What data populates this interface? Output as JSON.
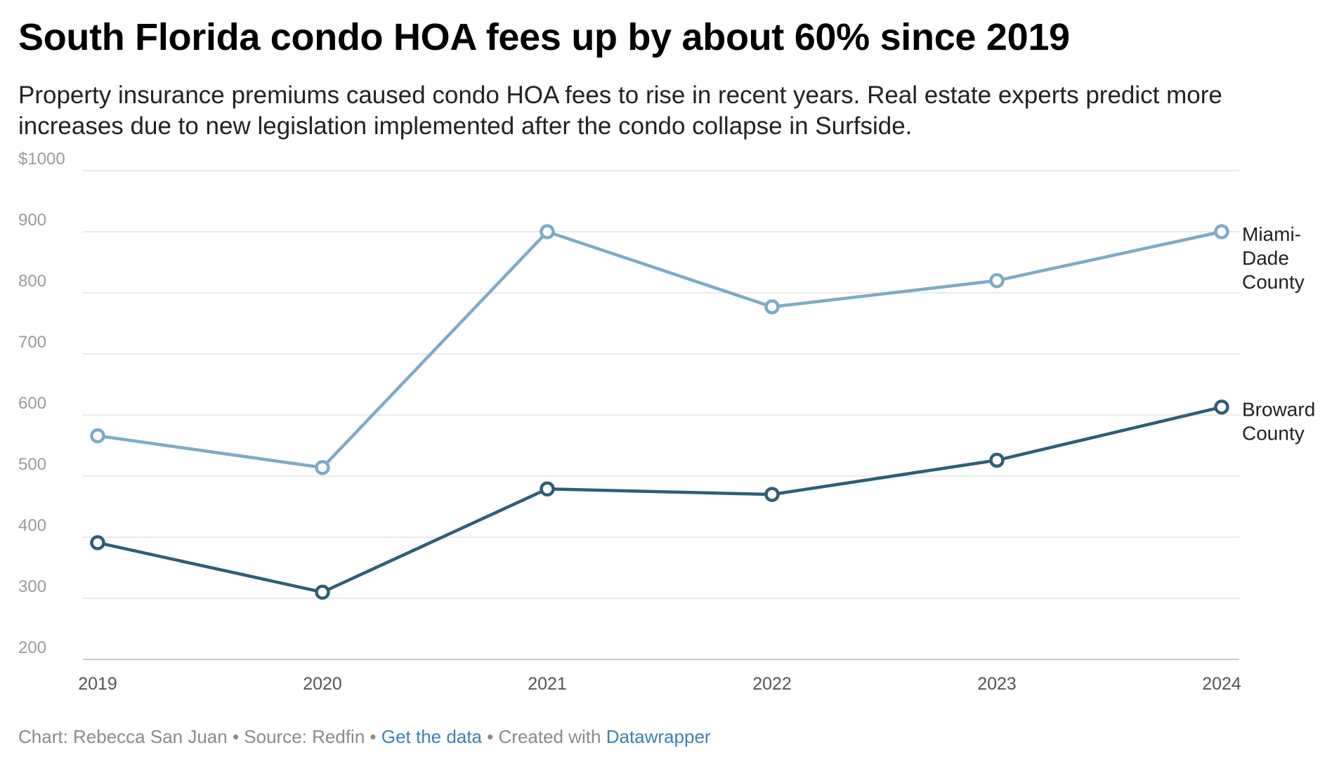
{
  "header": {
    "title": "South Florida condo HOA fees up by about 60% since 2019",
    "subtitle": "Property insurance premiums caused condo HOA fees to rise in recent years. Real estate experts predict more increases due to new legislation implemented after the condo collapse in Surfside."
  },
  "chart_data": {
    "type": "line",
    "title": "South Florida condo HOA fees up by about 60% since 2019",
    "xlabel": "",
    "ylabel": "",
    "x": [
      "2019",
      "2020",
      "2021",
      "2022",
      "2023",
      "2024"
    ],
    "ylim": [
      200,
      1000
    ],
    "yticks": [
      200,
      300,
      400,
      500,
      600,
      700,
      800,
      900,
      1000
    ],
    "ytick_labels": [
      "200",
      "300",
      "400",
      "500",
      "600",
      "700",
      "800",
      "900",
      "$1000"
    ],
    "grid": true,
    "series": [
      {
        "name": "Miami-Dade County",
        "label_lines": [
          "Miami-",
          "Dade",
          "County"
        ],
        "color": "#7eaac6",
        "values": [
          566,
          514,
          900,
          777,
          820,
          900
        ]
      },
      {
        "name": "Broward County",
        "label_lines": [
          "Broward",
          "County"
        ],
        "color": "#2e5e74",
        "values": [
          391,
          310,
          479,
          470,
          526,
          613
        ]
      }
    ]
  },
  "footer": {
    "credit": "Chart: Rebecca San Juan",
    "sep1": " • ",
    "source": "Source: Redfin",
    "sep2": " • ",
    "data_link": "Get the data",
    "sep3": " • ",
    "created": "Created with ",
    "tool_link": "Datawrapper"
  },
  "colors": {
    "gridline": "#e3e3e3",
    "axis_text": "#9a9a9a",
    "link": "#3d80b8"
  }
}
